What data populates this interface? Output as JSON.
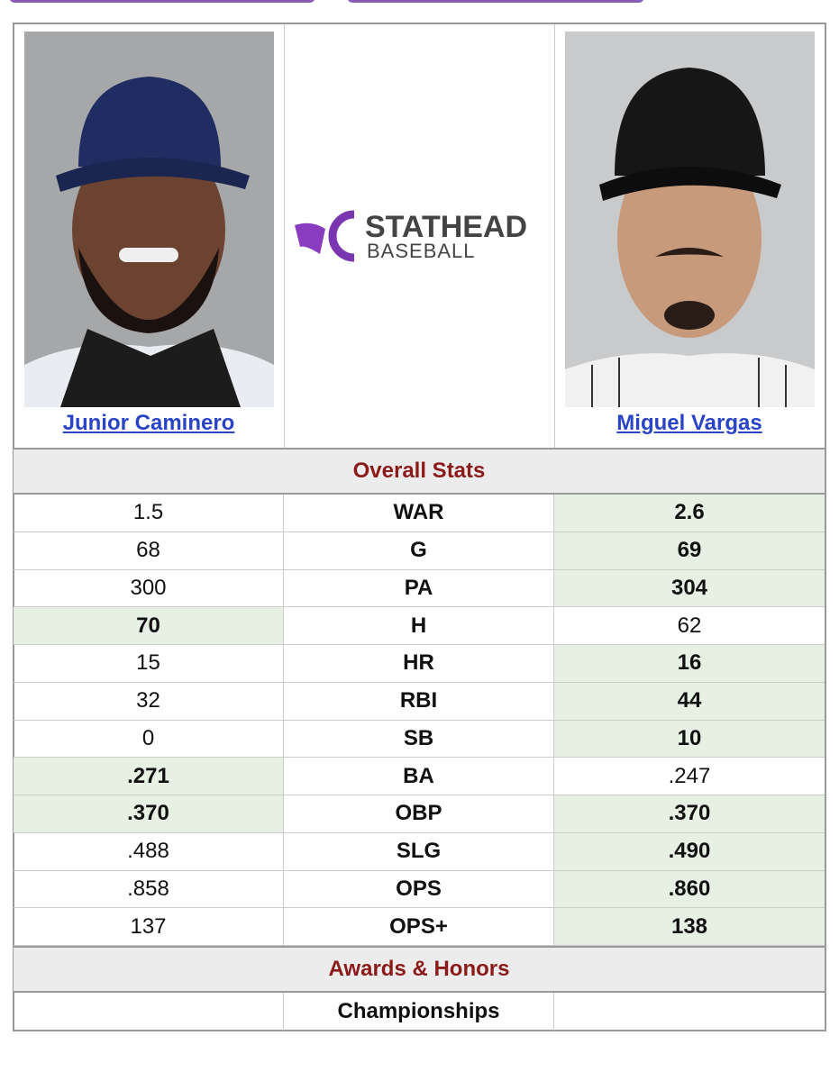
{
  "players": {
    "left": {
      "name": "Junior Caminero"
    },
    "right": {
      "name": "Miguel Vargas"
    }
  },
  "logo": {
    "top": "STATHEAD",
    "bottom": "BASEBALL"
  },
  "sections": {
    "overall": "Overall Stats",
    "awards": "Awards & Honors"
  },
  "rows": [
    {
      "left": "1.5",
      "stat": "WAR",
      "right": "2.6",
      "leader": "right"
    },
    {
      "left": "68",
      "stat": "G",
      "right": "69",
      "leader": "right"
    },
    {
      "left": "300",
      "stat": "PA",
      "right": "304",
      "leader": "right"
    },
    {
      "left": "70",
      "stat": "H",
      "right": "62",
      "leader": "left"
    },
    {
      "left": "15",
      "stat": "HR",
      "right": "16",
      "leader": "right"
    },
    {
      "left": "32",
      "stat": "RBI",
      "right": "44",
      "leader": "right"
    },
    {
      "left": "0",
      "stat": "SB",
      "right": "10",
      "leader": "right"
    },
    {
      "left": ".271",
      "stat": "BA",
      "right": ".247",
      "leader": "left"
    },
    {
      "left": ".370",
      "stat": "OBP",
      "right": ".370",
      "leader": "both"
    },
    {
      "left": ".488",
      "stat": "SLG",
      "right": ".490",
      "leader": "right"
    },
    {
      "left": ".858",
      "stat": "OPS",
      "right": ".860",
      "leader": "right"
    },
    {
      "left": "137",
      "stat": "OPS+",
      "right": "138",
      "leader": "right"
    }
  ],
  "awards": {
    "championships": "Championships"
  }
}
